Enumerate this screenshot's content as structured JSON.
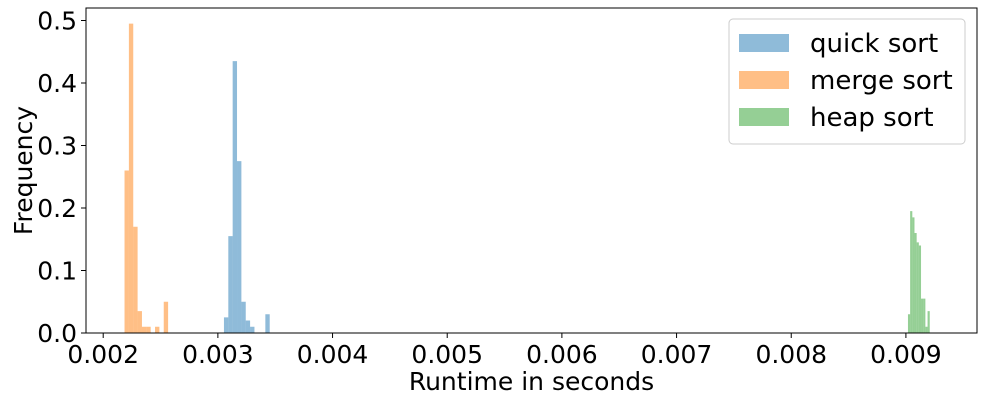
{
  "chart_data": {
    "type": "bar",
    "title": "",
    "xlabel": "Runtime in seconds",
    "ylabel": "Frequency",
    "xlim": [
      0.00185,
      0.00962
    ],
    "ylim": [
      0,
      0.52
    ],
    "xticks": [
      0.002,
      0.003,
      0.004,
      0.005,
      0.006,
      0.007,
      0.008,
      0.009
    ],
    "xtick_labels": [
      "0.002",
      "0.003",
      "0.004",
      "0.005",
      "0.006",
      "0.007",
      "0.008",
      "0.009"
    ],
    "yticks": [
      0.0,
      0.1,
      0.2,
      0.3,
      0.4,
      0.5
    ],
    "ytick_labels": [
      "0.0",
      "0.1",
      "0.2",
      "0.3",
      "0.4",
      "0.5"
    ],
    "grid": false,
    "legend_position": "top-right",
    "series": [
      {
        "name": "quick sort",
        "color": "#1f77b4",
        "bin_width": 3.8e-05,
        "bins": [
          [
            0.003053,
            0.025
          ],
          [
            0.003091,
            0.155
          ],
          [
            0.003129,
            0.435
          ],
          [
            0.003167,
            0.275
          ],
          [
            0.003205,
            0.05
          ],
          [
            0.003243,
            0.02
          ],
          [
            0.003281,
            0.01
          ],
          [
            0.003414,
            0.03
          ]
        ]
      },
      {
        "name": "merge sort",
        "color": "#ff7f0e",
        "bin_width": 3.8e-05,
        "bins": [
          [
            0.002186,
            0.26
          ],
          [
            0.002224,
            0.495
          ],
          [
            0.002262,
            0.17
          ],
          [
            0.0023,
            0.035
          ],
          [
            0.002338,
            0.01
          ],
          [
            0.002376,
            0.01
          ],
          [
            0.002452,
            0.01
          ],
          [
            0.002528,
            0.05
          ]
        ]
      },
      {
        "name": "heap sort",
        "color": "#2ca02c",
        "bin_width": 1.88e-05,
        "bins": [
          [
            0.009018,
            0.03
          ],
          [
            0.009037,
            0.195
          ],
          [
            0.009056,
            0.185
          ],
          [
            0.009075,
            0.16
          ],
          [
            0.009094,
            0.145
          ],
          [
            0.009113,
            0.14
          ],
          [
            0.009132,
            0.055
          ],
          [
            0.009151,
            0.055
          ],
          [
            0.00917,
            0.01
          ],
          [
            0.009189,
            0.035
          ]
        ]
      }
    ]
  }
}
